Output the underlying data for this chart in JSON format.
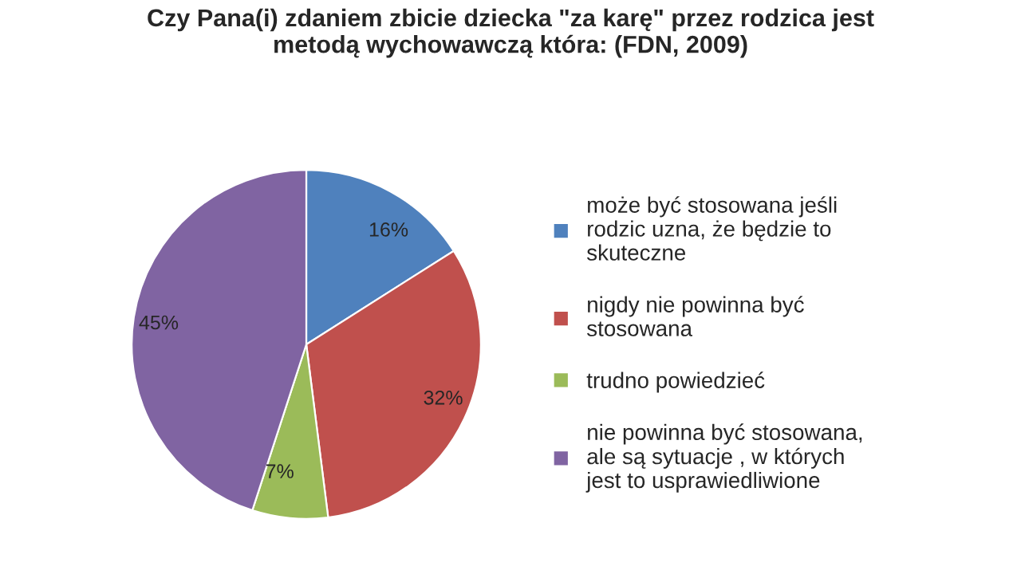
{
  "chart_data": {
    "type": "pie",
    "title": "Czy Pana(i) zdaniem zbicie dziecka \"za karę\" przez rodzica jest\nmetodą wychowawczą która: (FDN, 2009)",
    "categories": [
      "może być stosowana jeśli\nrodzic uzna, że będzie to\nskuteczne",
      "nigdy nie powinna być\nstosowana",
      "trudno powiedzieć",
      "nie powinna być stosowana,\nale są sytuacje , w których\njest to usprawiedliwione"
    ],
    "values": [
      16,
      32,
      7,
      45
    ],
    "colors": [
      "#4f81bd",
      "#c0504d",
      "#9bbb59",
      "#8064a2"
    ],
    "value_labels": [
      "16%",
      "32%",
      "7%",
      "45%"
    ],
    "legend": "right"
  }
}
